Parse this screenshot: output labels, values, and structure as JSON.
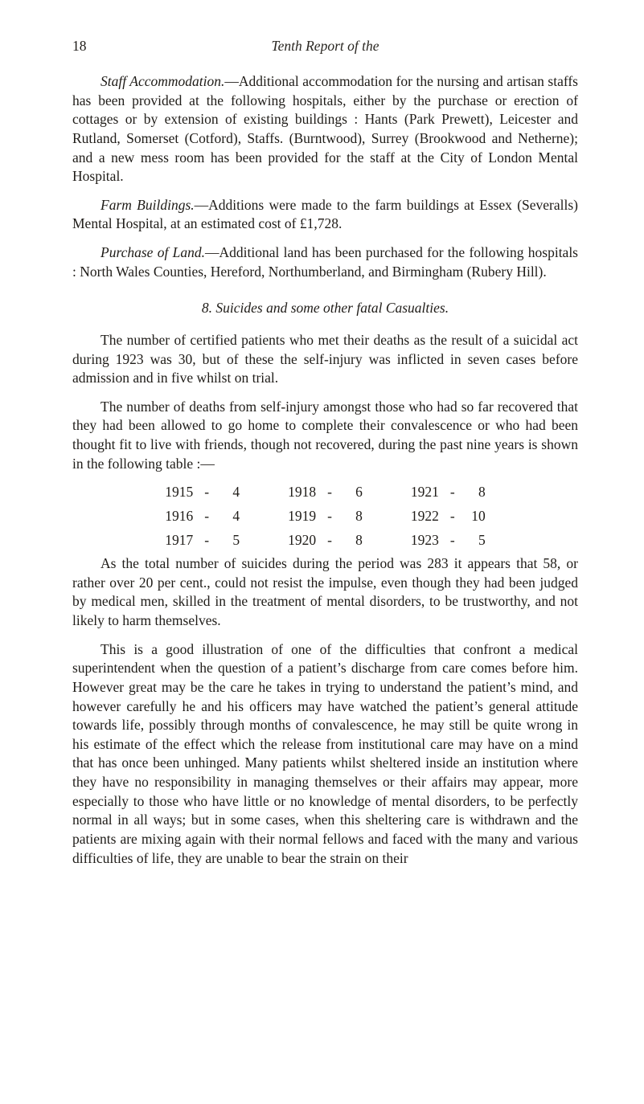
{
  "page_number": "18",
  "running_title": "Tenth Report of the",
  "p1_lead_italic": "Staff Accommodation.",
  "p1_rest": "—Additional accommodation for the nursing and artisan staffs has been provided at the following hospitals, either by the purchase or erection of cottages or by extension of existing buildings : Hants (Park Prewett), Leicester and Rutland, Somerset (Cotford), Staffs. (Burntwood), Surrey (Brookwood and Netherne); and a new mess room has been provided for the staff at the City of London Mental Hospital.",
  "p2_lead_italic": "Farm Buildings.",
  "p2_rest": "—Additions were made to the farm buildings at Essex (Severalls) Mental Hospital, at an estimated cost of £1,728.",
  "p3_lead_italic": "Purchase of Land.",
  "p3_rest": "—Additional land has been purchased for the following hospitals : North Wales Counties, Hereford, Northumberland, and Birmingham (Rubery Hill).",
  "subheading": "8. Suicides and some other fatal Casualties.",
  "p4": "The number of certified patients who met their deaths as the result of a suicidal act during 1923 was 30, but of these the self-injury was inflicted in seven cases before admission and in five whilst on trial.",
  "p5": "The number of deaths from self-injury amongst those who had so far recovered that they had been allowed to go home to com­plete their convalescence or who had been thought fit to live with friends, though not recovered, during the past nine years is shown in the following table :—",
  "table": {
    "rows": [
      [
        {
          "year": "1915",
          "val": "4"
        },
        {
          "year": "1918",
          "val": "6"
        },
        {
          "year": "1921",
          "val": "8"
        }
      ],
      [
        {
          "year": "1916",
          "val": "4"
        },
        {
          "year": "1919",
          "val": "8"
        },
        {
          "year": "1922",
          "val": "10"
        }
      ],
      [
        {
          "year": "1917",
          "val": "5"
        },
        {
          "year": "1920",
          "val": "8"
        },
        {
          "year": "1923",
          "val": "5"
        }
      ]
    ],
    "dash": "-"
  },
  "p6": "As the total number of suicides during the period was 283 it appears that 58, or rather over 20 per cent., could not resist the impulse, even though they had been judged by medical men, skilled in the treatment of mental disorders, to be trustworthy, and not likely to harm themselves.",
  "p7": "This is a good illustration of one of the difficulties that con­front a medical superintendent when the question of a patient’s discharge from care comes before him. However great may be the care he takes in trying to understand the patient’s mind, and however carefully he and his officers may have watched the patient’s general attitude towards life, possibly through months of convalescence, he may still be quite wrong in his estimate of the effect which the release from institutional care may have on a mind that has once been unhinged. Many patients whilst sheltered inside an institution where they have no responsibility in managing themselves or their affairs may appear, more especi­ally to those who have little or no knowledge of mental disorders, to be perfectly normal in all ways; but in some cases, when this sheltering care is withdrawn and the patients are mixing again with their normal fellows and faced with the many and various difficulties of life, they are unable to bear the strain on their"
}
